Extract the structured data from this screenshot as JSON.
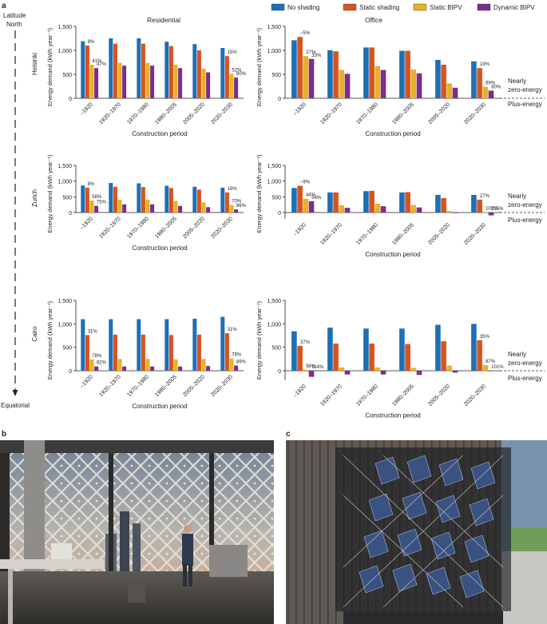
{
  "figure": {
    "panel_labels": [
      "a",
      "b",
      "c"
    ],
    "latitude_axis": {
      "title": "Latitude",
      "top": "North",
      "bottom": "Equatorial"
    },
    "legend": [
      {
        "label": "No shading",
        "color": "#1f6fb5"
      },
      {
        "label": "Static shading",
        "color": "#d9531e"
      },
      {
        "label": "Static BIPV",
        "color": "#e7b224"
      },
      {
        "label": "Dynamic BIPV",
        "color": "#7d2c8c"
      }
    ],
    "column_titles": [
      "Residential",
      "Office"
    ],
    "row_titles": [
      "Helsinki",
      "Zurich",
      "Cairo"
    ],
    "zone_labels": {
      "nzeb": [
        "Nearly",
        "zero-energy"
      ],
      "plus": "Plus-energy"
    }
  },
  "chart_data": [
    {
      "type": "bar",
      "city": "Helsinki",
      "building": "Residential",
      "categories": [
        "–1920",
        "1920–1970",
        "1970–1980",
        "1980–2005",
        "2005–2020",
        "2020–2030"
      ],
      "ylabel": "Energy demand (kWh year⁻¹)",
      "xlabel": "Construction period",
      "ylim": [
        0,
        1500
      ],
      "yticks": [
        "0",
        "500",
        "1,000",
        "1,500"
      ],
      "series": [
        {
          "name": "No shading",
          "values": [
            1190,
            1250,
            1250,
            1180,
            1130,
            1050
          ]
        },
        {
          "name": "Static shading",
          "values": [
            1100,
            1140,
            1140,
            1090,
            1000,
            880
          ]
        },
        {
          "name": "Static BIPV",
          "values": [
            700,
            740,
            740,
            700,
            620,
            510
          ]
        },
        {
          "name": "Dynamic BIPV",
          "values": [
            630,
            680,
            680,
            630,
            540,
            430
          ]
        }
      ],
      "annotations": [
        {
          "cat": 0,
          "series": 1,
          "text": "8%"
        },
        {
          "cat": 0,
          "series": 2,
          "text": "41%"
        },
        {
          "cat": 0,
          "series": 3,
          "text": "47%"
        },
        {
          "cat": 5,
          "series": 1,
          "text": "15%"
        },
        {
          "cat": 5,
          "series": 2,
          "text": "52%"
        },
        {
          "cat": 5,
          "series": 3,
          "text": "60%"
        }
      ]
    },
    {
      "type": "bar",
      "city": "Helsinki",
      "building": "Office",
      "categories": [
        "–1920",
        "1920–1970",
        "1970–1980",
        "1980–2005",
        "2005–2020",
        "2020–2030"
      ],
      "ylabel": "Energy demand (kWh year⁻¹)",
      "xlabel": "Construction period",
      "ylim": [
        0,
        1500
      ],
      "yticks": [
        "0",
        "500",
        "1,000",
        "1,500"
      ],
      "series": [
        {
          "name": "No shading",
          "values": [
            1210,
            1000,
            1060,
            990,
            800,
            770
          ]
        },
        {
          "name": "Static shading",
          "values": [
            1280,
            980,
            1060,
            990,
            700,
            630
          ]
        },
        {
          "name": "Static BIPV",
          "values": [
            880,
            590,
            670,
            600,
            310,
            240
          ]
        },
        {
          "name": "Dynamic BIPV",
          "values": [
            820,
            510,
            590,
            520,
            220,
            160
          ]
        }
      ],
      "annotations": [
        {
          "cat": 0,
          "series": 1,
          "text": "−5%"
        },
        {
          "cat": 0,
          "series": 2,
          "text": "27%"
        },
        {
          "cat": 0,
          "series": 3,
          "text": "33%"
        },
        {
          "cat": 5,
          "series": 1,
          "text": "19%"
        },
        {
          "cat": 5,
          "series": 2,
          "text": "69%"
        },
        {
          "cat": 5,
          "series": 3,
          "text": "80%"
        }
      ]
    },
    {
      "type": "bar",
      "city": "Zurich",
      "building": "Residential",
      "categories": [
        "–1920",
        "1920–1970",
        "1970–1980",
        "1980–2005",
        "2005–2020",
        "2020–2030"
      ],
      "ylabel": "Energy demand (kWh year⁻¹)",
      "xlabel": "Construction period",
      "ylim": [
        0,
        1500
      ],
      "yticks": [
        "0",
        "500",
        "1,000",
        "1,500"
      ],
      "series": [
        {
          "name": "No shading",
          "values": [
            860,
            940,
            930,
            850,
            820,
            790
          ]
        },
        {
          "name": "Static shading",
          "values": [
            790,
            820,
            810,
            780,
            730,
            640
          ]
        },
        {
          "name": "Static BIPV",
          "values": [
            380,
            410,
            410,
            370,
            320,
            240
          ]
        },
        {
          "name": "Dynamic BIPV",
          "values": [
            210,
            260,
            260,
            210,
            170,
            100
          ]
        }
      ],
      "annotations": [
        {
          "cat": 0,
          "series": 1,
          "text": "8%"
        },
        {
          "cat": 0,
          "series": 2,
          "text": "56%"
        },
        {
          "cat": 0,
          "series": 3,
          "text": "75%"
        },
        {
          "cat": 5,
          "series": 1,
          "text": "19%"
        },
        {
          "cat": 5,
          "series": 2,
          "text": "70%"
        },
        {
          "cat": 5,
          "series": 3,
          "text": "86%"
        }
      ]
    },
    {
      "type": "bar",
      "city": "Zurich",
      "building": "Office",
      "categories": [
        "–1920",
        "1920–1970",
        "1970–1980",
        "1980–2005",
        "2005–2020",
        "2020–2030"
      ],
      "ylabel": "Energy demand (kWh year⁻¹)",
      "xlabel": "Construction period",
      "ylim": [
        -200,
        1500
      ],
      "yticks": [
        "0",
        "500",
        "1,000",
        "1,500"
      ],
      "series": [
        {
          "name": "No shading",
          "values": [
            780,
            640,
            680,
            640,
            560,
            560
          ]
        },
        {
          "name": "Static shading",
          "values": [
            850,
            640,
            690,
            650,
            460,
            410
          ]
        },
        {
          "name": "Static BIPV",
          "values": [
            440,
            230,
            280,
            240,
            50,
            10
          ]
        },
        {
          "name": "Dynamic BIPV",
          "values": [
            360,
            150,
            200,
            160,
            -20,
            -90
          ]
        }
      ],
      "annotations": [
        {
          "cat": 0,
          "series": 1,
          "text": "−9%"
        },
        {
          "cat": 0,
          "series": 2,
          "text": "44%"
        },
        {
          "cat": 0,
          "series": 3,
          "text": "54%"
        },
        {
          "cat": 5,
          "series": 1,
          "text": "27%"
        },
        {
          "cat": 5,
          "series": 2,
          "text": "100%"
        },
        {
          "cat": 5,
          "series": 3,
          "text": "115%"
        }
      ]
    },
    {
      "type": "bar",
      "city": "Cairo",
      "building": "Residential",
      "categories": [
        "–1920",
        "1920–1970",
        "1970–1980",
        "1980–2005",
        "2005–2020",
        "2020–2030"
      ],
      "ylabel": "Energy demand (kWh year⁻¹)",
      "xlabel": "Construction period",
      "ylim": [
        0,
        1500
      ],
      "yticks": [
        "0",
        "500",
        "1,000",
        "1,500"
      ],
      "series": [
        {
          "name": "No shading",
          "values": [
            1100,
            1100,
            1100,
            1100,
            1110,
            1150
          ]
        },
        {
          "name": "Static shading",
          "values": [
            760,
            770,
            770,
            760,
            770,
            800
          ]
        },
        {
          "name": "Static BIPV",
          "values": [
            240,
            250,
            250,
            240,
            250,
            260
          ]
        },
        {
          "name": "Dynamic BIPV",
          "values": [
            90,
            90,
            90,
            90,
            100,
            110
          ]
        }
      ],
      "annotations": [
        {
          "cat": 0,
          "series": 1,
          "text": "31%"
        },
        {
          "cat": 0,
          "series": 2,
          "text": "78%"
        },
        {
          "cat": 0,
          "series": 3,
          "text": "92%"
        },
        {
          "cat": 5,
          "series": 1,
          "text": "31%"
        },
        {
          "cat": 5,
          "series": 2,
          "text": "76%"
        },
        {
          "cat": 5,
          "series": 3,
          "text": "89%"
        }
      ]
    },
    {
      "type": "bar",
      "city": "Cairo",
      "building": "Office",
      "categories": [
        "–1920",
        "1920–1970",
        "1970–1980",
        "1980–2005",
        "2005–2020",
        "2020–2030"
      ],
      "ylabel": "Energy demand (kWh year⁻¹)",
      "xlabel": "Construction period",
      "ylim": [
        -200,
        1500
      ],
      "yticks": [
        "0",
        "500",
        "1,000",
        "1,500"
      ],
      "series": [
        {
          "name": "No shading",
          "values": [
            840,
            920,
            900,
            900,
            980,
            1000
          ]
        },
        {
          "name": "Static shading",
          "values": [
            530,
            580,
            580,
            570,
            630,
            650
          ]
        },
        {
          "name": "Static BIPV",
          "values": [
            20,
            70,
            70,
            60,
            110,
            120
          ]
        },
        {
          "name": "Dynamic BIPV",
          "values": [
            -130,
            -80,
            -80,
            -90,
            -40,
            -10
          ]
        }
      ],
      "annotations": [
        {
          "cat": 0,
          "series": 1,
          "text": "37%"
        },
        {
          "cat": 0,
          "series": 2,
          "text": "98%"
        },
        {
          "cat": 0,
          "series": 3,
          "text": "114%"
        },
        {
          "cat": 5,
          "series": 1,
          "text": "35%"
        },
        {
          "cat": 5,
          "series": 2,
          "text": "87%"
        },
        {
          "cat": 5,
          "series": 3,
          "text": "101%"
        }
      ]
    }
  ]
}
